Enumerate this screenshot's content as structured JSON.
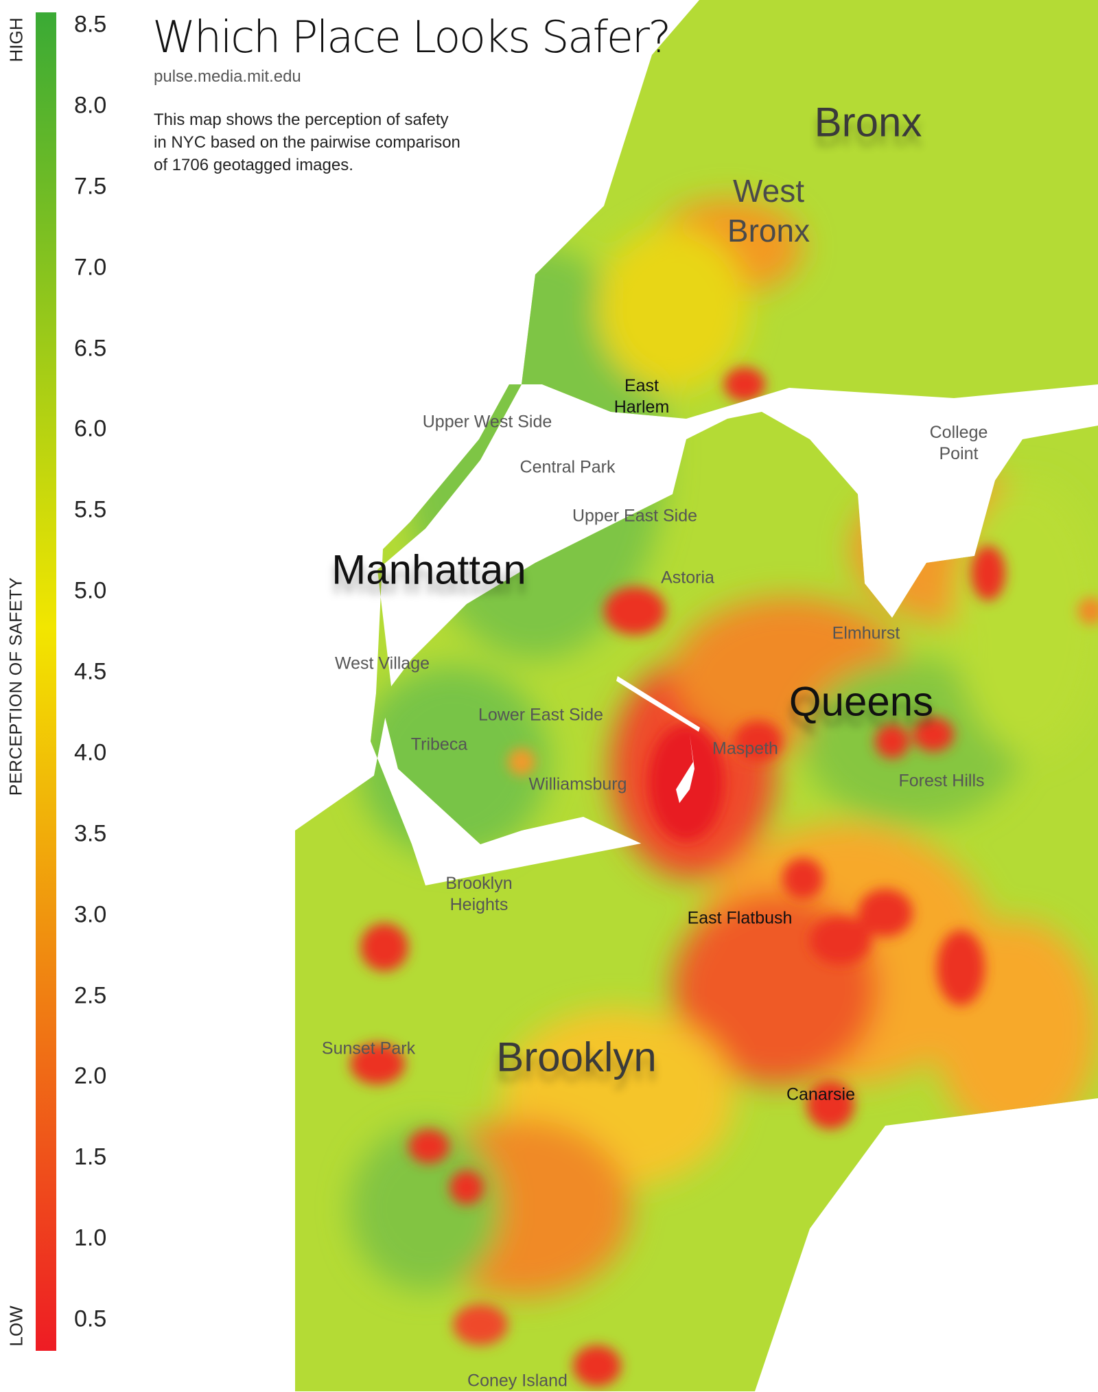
{
  "title": "Which Place Looks Safer?",
  "subtitle": "pulse.media.mit.edu",
  "description": [
    "This map shows the perception of safety",
    "in NYC based on the pairwise comparison",
    "of 1706 geotagged images."
  ],
  "legend": {
    "high_label": "HIGH",
    "low_label": "LOW",
    "axis_label": "PERCEPTION OF SAFETY",
    "ticks": [
      "8.5",
      "8.0",
      "7.5",
      "7.0",
      "6.5",
      "6.0",
      "5.5",
      "5.0",
      "4.5",
      "4.0",
      "3.5",
      "3.0",
      "2.5",
      "2.0",
      "1.5",
      "1.0",
      "0.5"
    ],
    "color_high": "#3aaa35",
    "color_mid": "#f2e600",
    "color_low": "#ee1c24"
  },
  "map": {
    "water_color": "#ffffff",
    "boroughs": [
      {
        "key": "bronx",
        "name": "Bronx"
      },
      {
        "key": "west_bronx",
        "name": "West Bronx",
        "lines": [
          "West",
          "Bronx"
        ]
      },
      {
        "key": "manhattan",
        "name": "Manhattan"
      },
      {
        "key": "queens",
        "name": "Queens"
      },
      {
        "key": "brooklyn",
        "name": "Brooklyn"
      }
    ],
    "neighborhoods": [
      {
        "key": "east_harlem",
        "lines": [
          "East",
          "Harlem"
        ]
      },
      {
        "key": "upper_west_side",
        "lines": [
          "Upper West Side"
        ]
      },
      {
        "key": "central_park",
        "lines": [
          "Central Park"
        ]
      },
      {
        "key": "upper_east_side",
        "lines": [
          "Upper East Side"
        ]
      },
      {
        "key": "college_point",
        "lines": [
          "College",
          "Point"
        ]
      },
      {
        "key": "astoria",
        "lines": [
          "Astoria"
        ]
      },
      {
        "key": "elmhurst",
        "lines": [
          "Elmhurst"
        ]
      },
      {
        "key": "west_village",
        "lines": [
          "West Village"
        ]
      },
      {
        "key": "lower_east_side",
        "lines": [
          "Lower East Side"
        ]
      },
      {
        "key": "tribeca",
        "lines": [
          "Tribeca"
        ]
      },
      {
        "key": "maspeth",
        "lines": [
          "Maspeth"
        ]
      },
      {
        "key": "williamsburg",
        "lines": [
          "Williamsburg"
        ]
      },
      {
        "key": "forest_hills",
        "lines": [
          "Forest Hills"
        ]
      },
      {
        "key": "brooklyn_heights",
        "lines": [
          "Brooklyn",
          "Heights"
        ]
      },
      {
        "key": "east_flatbush",
        "lines": [
          "East Flatbush"
        ]
      },
      {
        "key": "sunset_park",
        "lines": [
          "Sunset Park"
        ]
      },
      {
        "key": "canarsie",
        "lines": [
          "Canarsie"
        ]
      },
      {
        "key": "coney_island",
        "lines": [
          "Coney Island"
        ]
      }
    ]
  }
}
